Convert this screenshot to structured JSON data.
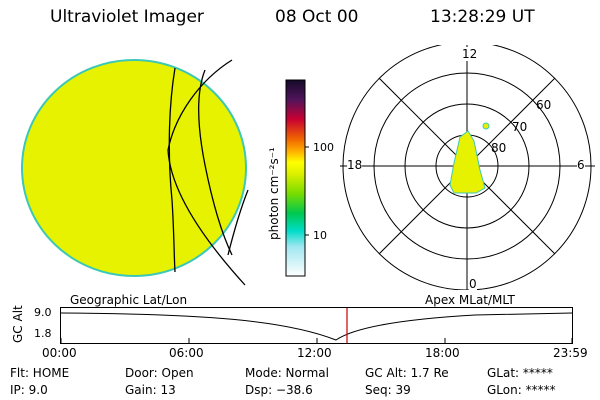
{
  "header": {
    "instrument": "Ultraviolet Imager",
    "date": "08 Oct 00",
    "time": "13:28:29 UT"
  },
  "colorbar": {
    "unit_label": "photon cm⁻²s⁻¹",
    "ticks": [
      "100",
      "10"
    ]
  },
  "polar_plot": {
    "mlt_labels": {
      "top": "12",
      "right": "6",
      "bottom": "0",
      "left": "18"
    },
    "lat_labels": [
      "60",
      "70",
      "80"
    ]
  },
  "orbit_plot": {
    "left_title": "Geographic Lat/Lon",
    "right_title": "Apex MLat/MLT",
    "ylabel": "GC Alt",
    "yticks": [
      "9.0",
      "1.8"
    ],
    "xticks": [
      "00:00",
      "06:00",
      "12:00",
      "18:00",
      "23:59"
    ]
  },
  "info": {
    "flt": "Flt: HOME",
    "door": "Door: Open",
    "mode": "Mode: Normal",
    "gc_alt": "GC Alt: 1.7 Re",
    "glat": "GLat: *****",
    "ip": "IP:  9.0",
    "gain": "Gain: 13",
    "dsp": "Dsp:  −38.6",
    "seq": "Seq: 39",
    "glon": "GLon: *****"
  },
  "colors": {
    "disk_fill": "#e6f200",
    "disk_edge": "#3cc8b4",
    "cursor": "#cc0000"
  }
}
